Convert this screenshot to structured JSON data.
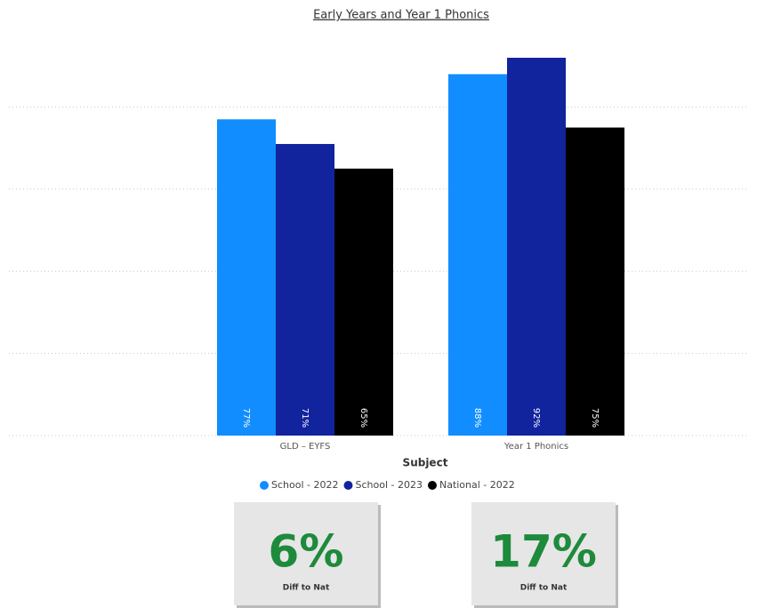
{
  "chart_data": {
    "type": "bar",
    "title": "Early Years and Year 1 Phonics",
    "categories": [
      "GLD – EYFS",
      "Year 1 Phonics"
    ],
    "x_label": "Subject",
    "series": [
      {
        "name": "School - 2022",
        "color": "#118dff",
        "values": [
          77,
          88
        ],
        "value_labels": [
          "77%",
          "88%"
        ]
      },
      {
        "name": "School - 2023",
        "color": "#12239e",
        "values": [
          71,
          92
        ],
        "value_labels": [
          "71%",
          "92%"
        ]
      },
      {
        "name": "National - 2022",
        "color": "#000000",
        "values": [
          65,
          75
        ],
        "value_labels": [
          "65%",
          "75%"
        ]
      }
    ],
    "ylim": [
      0,
      100
    ],
    "yticks": [
      0,
      20,
      40,
      60,
      80
    ],
    "grid": true,
    "legend": "bottom"
  },
  "cards": [
    {
      "value": "6%",
      "label": "Diff to Nat"
    },
    {
      "value": "17%",
      "label": "Diff to Nat"
    }
  ]
}
